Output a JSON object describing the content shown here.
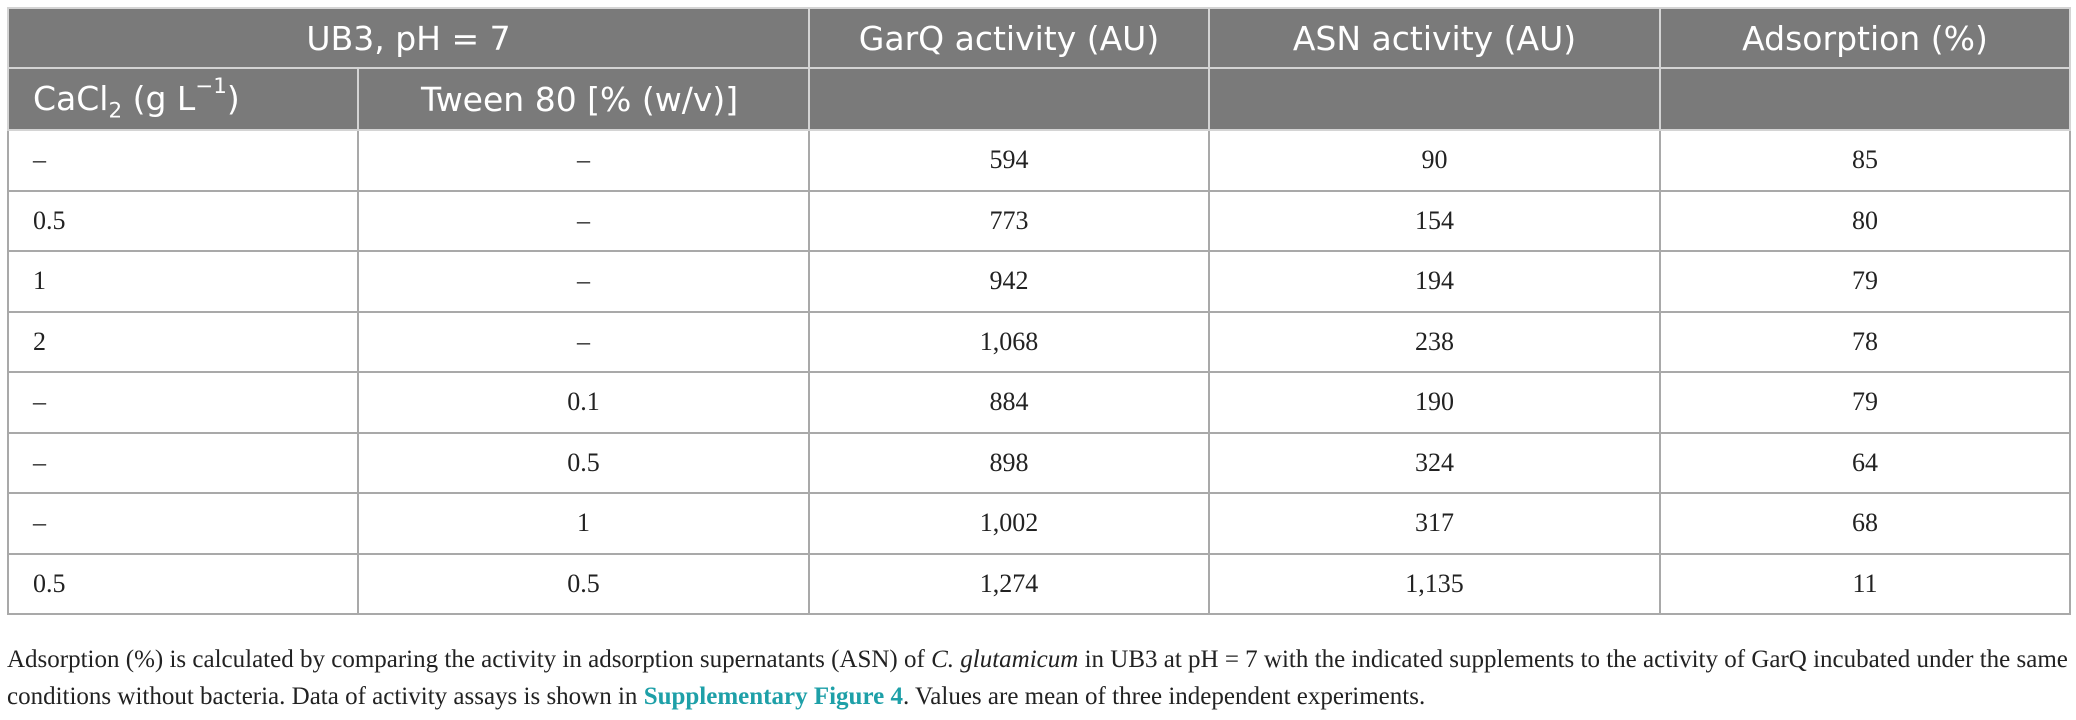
{
  "table": {
    "header_row1": {
      "group": "UB3, pH = 7",
      "garq": "GarQ activity (AU)",
      "asn": "ASN activity (AU)",
      "adsorption": "Adsorption (%)"
    },
    "header_row2": {
      "cacl_prefix": "CaCl",
      "cacl_sub": "2",
      "cacl_mid": " (g L",
      "cacl_sup": "−1",
      "cacl_suffix": ")",
      "tween": "Tween 80 [% (w/v)]"
    },
    "rows": [
      [
        "–",
        "–",
        "594",
        "90",
        "85"
      ],
      [
        "0.5",
        "–",
        "773",
        "154",
        "80"
      ],
      [
        "1",
        "–",
        "942",
        "194",
        "79"
      ],
      [
        "2",
        "–",
        "1,068",
        "238",
        "78"
      ],
      [
        "–",
        "0.1",
        "884",
        "190",
        "79"
      ],
      [
        "–",
        "0.5",
        "898",
        "324",
        "64"
      ],
      [
        "–",
        "1",
        "1,002",
        "317",
        "68"
      ],
      [
        "0.5",
        "0.5",
        "1,274",
        "1,135",
        "11"
      ]
    ]
  },
  "footnote": {
    "part1": "Adsorption (%) is calculated by comparing the activity in adsorption supernatants (ASN) of ",
    "species": "C. glutamicum",
    "part2": " in UB3 at pH = 7 with the indicated supplements to the activity of GarQ incubated under the same conditions without bacteria. Data of activity assays is shown in ",
    "link": "Supplementary Figure 4",
    "part3": ". Values are mean of three independent experiments."
  }
}
